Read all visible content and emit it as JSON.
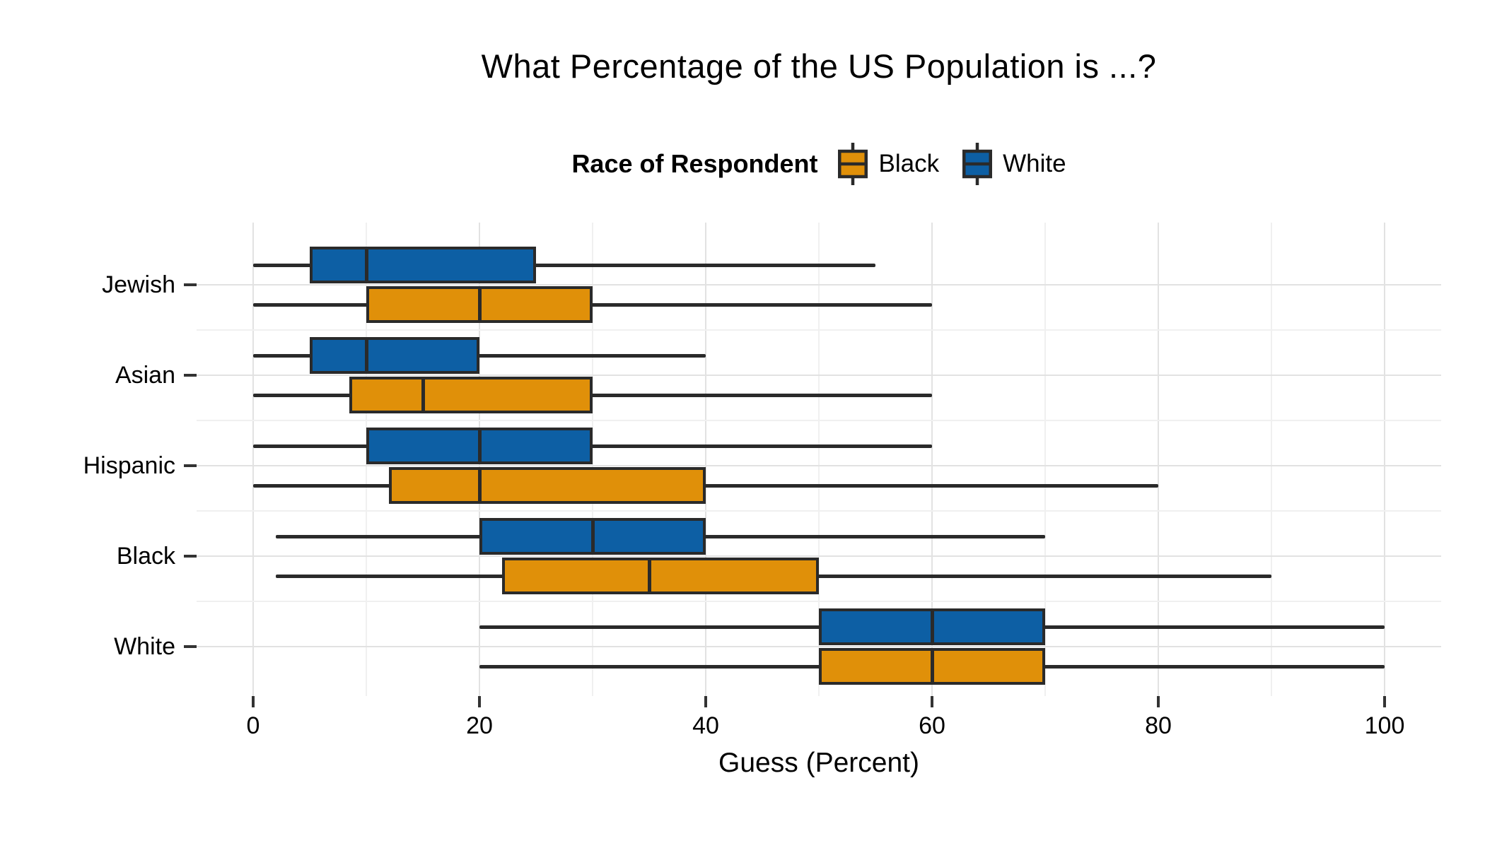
{
  "chart_data": {
    "type": "boxplot",
    "orientation": "horizontal",
    "title": "What Percentage of the US Population is ...?",
    "xlabel": "Guess (Percent)",
    "ylabel": "",
    "xlim": [
      0,
      100
    ],
    "x_major_ticks": [
      0,
      20,
      40,
      60,
      80,
      100
    ],
    "x_minor_gridlines": [
      10,
      30,
      50,
      70,
      90
    ],
    "grid": "white background, light gray major + fainter minor gridlines, no panel border",
    "categories_top_to_bottom": [
      "Jewish",
      "Asian",
      "Hispanic",
      "Black",
      "White"
    ],
    "legend": {
      "title": "Race of Respondent",
      "position": "top",
      "entries": [
        {
          "label": "Black",
          "color": "#E09009"
        },
        {
          "label": "White",
          "color": "#0D5FA4"
        }
      ]
    },
    "series": [
      {
        "name": "White",
        "color": "#0D5FA4",
        "row_position": "above-category-center",
        "boxes": [
          {
            "category": "Jewish",
            "min": 0,
            "q1": 5,
            "median": 10,
            "q3": 25,
            "max": 55
          },
          {
            "category": "Asian",
            "min": 0,
            "q1": 5,
            "median": 10,
            "q3": 20,
            "max": 40
          },
          {
            "category": "Hispanic",
            "min": 0,
            "q1": 10,
            "median": 20,
            "q3": 30,
            "max": 60
          },
          {
            "category": "Black",
            "min": 2,
            "q1": 20,
            "median": 30,
            "q3": 40,
            "max": 70
          },
          {
            "category": "White",
            "min": 20,
            "q1": 50,
            "median": 60,
            "q3": 70,
            "max": 100
          }
        ]
      },
      {
        "name": "Black",
        "color": "#E09009",
        "row_position": "below-category-center",
        "boxes": [
          {
            "category": "Jewish",
            "min": 0,
            "q1": 10,
            "median": 20,
            "q3": 30,
            "max": 60
          },
          {
            "category": "Asian",
            "min": 0,
            "q1": 8.5,
            "median": 15,
            "q3": 30,
            "max": 60
          },
          {
            "category": "Hispanic",
            "min": 0,
            "q1": 12,
            "median": 20,
            "q3": 40,
            "max": 80
          },
          {
            "category": "Black",
            "min": 2,
            "q1": 22,
            "median": 35,
            "q3": 50,
            "max": 90
          },
          {
            "category": "White",
            "min": 20,
            "q1": 50,
            "median": 60,
            "q3": 70,
            "max": 100
          }
        ]
      }
    ],
    "style_colors": {
      "box_border": "#2A2A2A",
      "grid_major": "#E2E2E2",
      "grid_minor": "#F0F0F0",
      "axis_tick": "#333333",
      "text": "#000000"
    }
  }
}
